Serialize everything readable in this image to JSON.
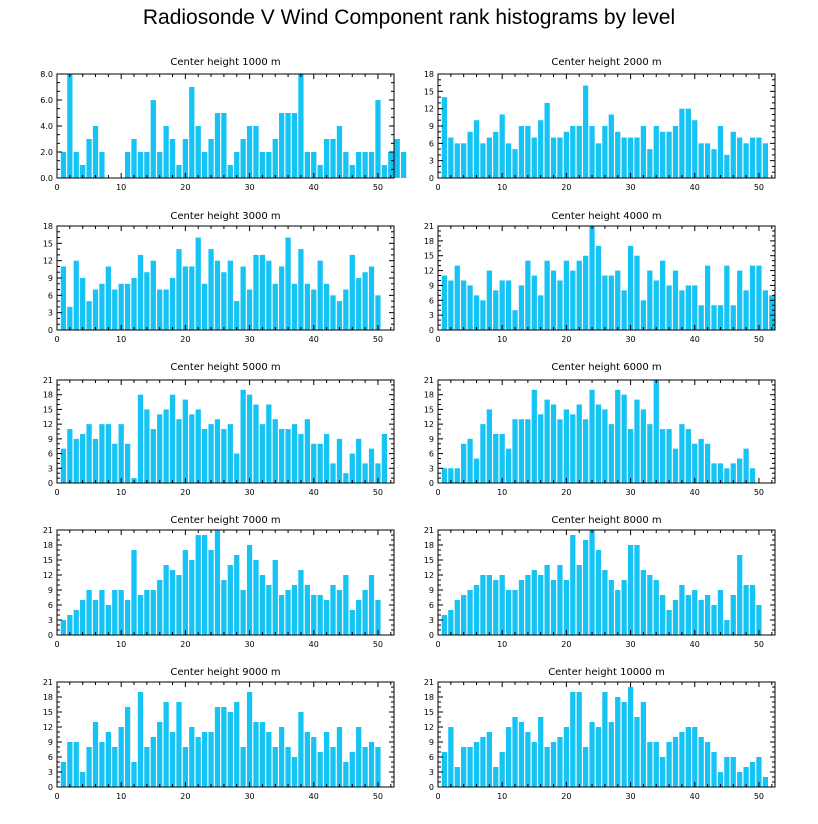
{
  "title": "Radiosonde V Wind Component rank histograms by level",
  "colors": {
    "bar": "#16c3f5",
    "axis": "#000000"
  },
  "chart_data": [
    {
      "type": "bar",
      "title": "Center height 1000 m",
      "x_ticks": [
        0,
        10,
        20,
        30,
        40,
        50
      ],
      "y_ticks": [
        "0.0",
        "2.0",
        "4.0",
        "6.0",
        "8.0"
      ],
      "ylim": [
        0,
        8
      ],
      "values": [
        2,
        8,
        2,
        1,
        3,
        4,
        2,
        0,
        0,
        0,
        2,
        3,
        2,
        2,
        6,
        2,
        4,
        3,
        1,
        3,
        7,
        4,
        2,
        3,
        5,
        5,
        1,
        2,
        3,
        4,
        4,
        2,
        2,
        3,
        5,
        5,
        5,
        8,
        2,
        2,
        1,
        3,
        3,
        4,
        2,
        1,
        2,
        2,
        2,
        6,
        1,
        2,
        3,
        2
      ]
    },
    {
      "type": "bar",
      "title": "Center height 2000 m",
      "x_ticks": [
        0,
        10,
        20,
        30,
        40,
        50
      ],
      "y_ticks": [
        "0",
        "3",
        "6",
        "9",
        "12",
        "15",
        "18"
      ],
      "ylim": [
        0,
        18
      ],
      "values": [
        14,
        7,
        6,
        6,
        8,
        10,
        6,
        7,
        8,
        11,
        6,
        5,
        9,
        9,
        7,
        10,
        13,
        7,
        7,
        8,
        9,
        9,
        16,
        9,
        6,
        9,
        11,
        8,
        7,
        7,
        7,
        9,
        5,
        9,
        8,
        8,
        9,
        12,
        12,
        10,
        6,
        6,
        5,
        9,
        4,
        8,
        7,
        6,
        7,
        7,
        6
      ]
    },
    {
      "type": "bar",
      "title": "Center height 3000 m",
      "x_ticks": [
        0,
        10,
        20,
        30,
        40,
        50
      ],
      "y_ticks": [
        "0",
        "3",
        "6",
        "9",
        "12",
        "15",
        "18"
      ],
      "ylim": [
        0,
        18
      ],
      "values": [
        11,
        4,
        12,
        9,
        5,
        7,
        8,
        11,
        7,
        8,
        8,
        9,
        13,
        10,
        12,
        7,
        7,
        9,
        14,
        11,
        11,
        16,
        8,
        14,
        12,
        10,
        12,
        5,
        11,
        7,
        13,
        13,
        12,
        8,
        11,
        16,
        8,
        14,
        8,
        7,
        12,
        8,
        6,
        5,
        7,
        13,
        9,
        10,
        11,
        6
      ]
    },
    {
      "type": "bar",
      "title": "Center height 4000 m",
      "x_ticks": [
        0,
        10,
        20,
        30,
        40,
        50
      ],
      "y_ticks": [
        "0",
        "3",
        "6",
        "9",
        "12",
        "15",
        "18",
        "21"
      ],
      "ylim": [
        0,
        21
      ],
      "values": [
        11,
        10,
        13,
        10,
        9,
        7,
        6,
        12,
        8,
        10,
        10,
        4,
        9,
        14,
        11,
        7,
        14,
        12,
        10,
        14,
        12,
        14,
        15,
        21,
        17,
        11,
        11,
        12,
        8,
        17,
        15,
        6,
        12,
        10,
        14,
        9,
        12,
        8,
        9,
        9,
        5,
        13,
        5,
        5,
        13,
        5,
        12,
        8,
        13,
        13,
        8,
        7
      ]
    },
    {
      "type": "bar",
      "title": "Center height 5000 m",
      "x_ticks": [
        0,
        10,
        20,
        30,
        40,
        50
      ],
      "y_ticks": [
        "0",
        "3",
        "6",
        "9",
        "12",
        "15",
        "18",
        "21"
      ],
      "ylim": [
        0,
        21
      ],
      "values": [
        7,
        11,
        9,
        10,
        12,
        9,
        12,
        12,
        8,
        12,
        8,
        1,
        18,
        15,
        11,
        14,
        15,
        18,
        13,
        17,
        14,
        15,
        11,
        12,
        13,
        11,
        12,
        6,
        19,
        18,
        16,
        12,
        16,
        13,
        11,
        11,
        12,
        10,
        13,
        8,
        8,
        10,
        4,
        9,
        2,
        6,
        9,
        4,
        7,
        4,
        10
      ]
    },
    {
      "type": "bar",
      "title": "Center height 6000 m",
      "x_ticks": [
        0,
        10,
        20,
        30,
        40,
        50
      ],
      "y_ticks": [
        "0",
        "3",
        "6",
        "9",
        "12",
        "15",
        "18",
        "21"
      ],
      "ylim": [
        0,
        21
      ],
      "values": [
        3,
        3,
        3,
        8,
        9,
        5,
        12,
        15,
        10,
        10,
        7,
        13,
        13,
        13,
        19,
        14,
        17,
        16,
        13,
        15,
        14,
        16,
        13,
        19,
        16,
        15,
        12,
        19,
        18,
        11,
        17,
        15,
        12,
        21,
        11,
        11,
        7,
        12,
        11,
        8,
        9,
        8,
        4,
        4,
        3,
        4,
        5,
        7,
        3
      ]
    },
    {
      "type": "bar",
      "title": "Center height 7000 m",
      "x_ticks": [
        0,
        10,
        20,
        30,
        40,
        50
      ],
      "y_ticks": [
        "0",
        "3",
        "6",
        "9",
        "12",
        "15",
        "18",
        "21"
      ],
      "ylim": [
        0,
        21
      ],
      "values": [
        3,
        4,
        5,
        7,
        9,
        7,
        9,
        6,
        9,
        9,
        7,
        17,
        8,
        9,
        9,
        11,
        14,
        13,
        12,
        17,
        15,
        20,
        20,
        17,
        21,
        11,
        14,
        16,
        9,
        18,
        15,
        12,
        10,
        15,
        8,
        9,
        10,
        13,
        10,
        8,
        8,
        7,
        10,
        9,
        12,
        5,
        7,
        9,
        12,
        7
      ]
    },
    {
      "type": "bar",
      "title": "Center height 8000 m",
      "x_ticks": [
        0,
        10,
        20,
        30,
        40,
        50
      ],
      "y_ticks": [
        "0",
        "3",
        "6",
        "9",
        "12",
        "15",
        "18",
        "21"
      ],
      "ylim": [
        0,
        21
      ],
      "values": [
        4,
        5,
        7,
        8,
        9,
        10,
        12,
        12,
        11,
        12,
        9,
        9,
        11,
        12,
        13,
        12,
        14,
        11,
        14,
        11,
        20,
        14,
        19,
        21,
        17,
        13,
        11,
        9,
        11,
        18,
        18,
        13,
        12,
        11,
        8,
        5,
        7,
        10,
        8,
        9,
        7,
        8,
        6,
        9,
        3,
        8,
        16,
        10,
        10,
        6
      ]
    },
    {
      "type": "bar",
      "title": "Center height 9000 m",
      "x_ticks": [
        0,
        10,
        20,
        30,
        40,
        50
      ],
      "y_ticks": [
        "0",
        "3",
        "6",
        "9",
        "12",
        "15",
        "18",
        "21"
      ],
      "ylim": [
        0,
        21
      ],
      "values": [
        5,
        9,
        9,
        3,
        8,
        13,
        9,
        11,
        8,
        12,
        16,
        5,
        19,
        8,
        10,
        13,
        17,
        11,
        17,
        8,
        12,
        10,
        11,
        11,
        16,
        16,
        15,
        17,
        8,
        19,
        13,
        13,
        11,
        8,
        12,
        8,
        6,
        15,
        11,
        10,
        7,
        11,
        8,
        12,
        5,
        7,
        12,
        8,
        9,
        8
      ]
    },
    {
      "type": "bar",
      "title": "Center height 10000 m",
      "x_ticks": [
        0,
        10,
        20,
        30,
        40,
        50
      ],
      "y_ticks": [
        "0",
        "3",
        "6",
        "9",
        "12",
        "15",
        "18",
        "21"
      ],
      "ylim": [
        0,
        21
      ],
      "values": [
        7,
        12,
        4,
        8,
        8,
        9,
        10,
        11,
        4,
        7,
        12,
        14,
        13,
        11,
        9,
        14,
        8,
        9,
        10,
        12,
        19,
        19,
        8,
        13,
        12,
        19,
        13,
        18,
        17,
        20,
        14,
        17,
        9,
        9,
        6,
        9,
        10,
        11,
        12,
        12,
        10,
        9,
        7,
        3,
        6,
        6,
        3,
        4,
        5,
        6,
        2
      ]
    }
  ]
}
